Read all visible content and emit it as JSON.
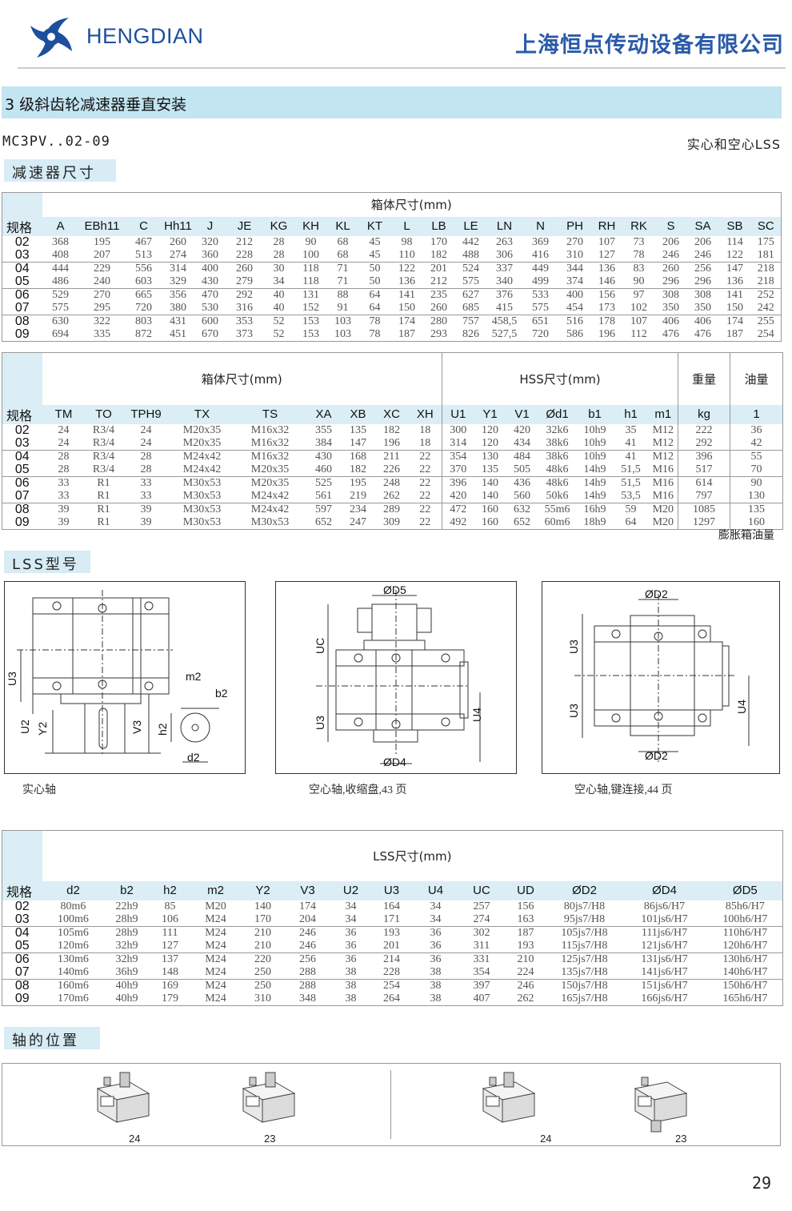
{
  "header": {
    "logo_text": "HENGDIAN",
    "company": "上海恒点传动设备有限公司",
    "brand_color": "#1d4f9e"
  },
  "title": "3 级斜齿轮减速器垂直安装",
  "model": "MC3PV..02-09",
  "shaft_types": "实心和空心LSS",
  "section_reducer": "减速器尺寸",
  "table1": {
    "group": "箱体尺寸(mm)",
    "columns": [
      "规格",
      "A",
      "EBh11",
      "C",
      "Hh11",
      "J",
      "JE",
      "KG",
      "KH",
      "KL",
      "KT",
      "L",
      "LB",
      "LE",
      "LN",
      "N",
      "PH",
      "RH",
      "RK",
      "S",
      "SA",
      "SB",
      "SC"
    ],
    "rows": [
      [
        "02",
        "368",
        "195",
        "467",
        "260",
        "320",
        "212",
        "28",
        "90",
        "68",
        "45",
        "98",
        "170",
        "442",
        "263",
        "369",
        "270",
        "107",
        "73",
        "206",
        "206",
        "114",
        "175"
      ],
      [
        "03",
        "408",
        "207",
        "513",
        "274",
        "360",
        "228",
        "28",
        "100",
        "68",
        "45",
        "110",
        "182",
        "488",
        "306",
        "416",
        "310",
        "127",
        "78",
        "246",
        "246",
        "122",
        "181"
      ],
      [
        "04",
        "444",
        "229",
        "556",
        "314",
        "400",
        "260",
        "30",
        "118",
        "71",
        "50",
        "122",
        "201",
        "524",
        "337",
        "449",
        "344",
        "136",
        "83",
        "260",
        "256",
        "147",
        "218"
      ],
      [
        "05",
        "486",
        "240",
        "603",
        "329",
        "430",
        "279",
        "34",
        "118",
        "71",
        "50",
        "136",
        "212",
        "575",
        "340",
        "499",
        "374",
        "146",
        "90",
        "296",
        "296",
        "136",
        "218"
      ],
      [
        "06",
        "529",
        "270",
        "665",
        "356",
        "470",
        "292",
        "40",
        "131",
        "88",
        "64",
        "141",
        "235",
        "627",
        "376",
        "533",
        "400",
        "156",
        "97",
        "308",
        "308",
        "141",
        "252"
      ],
      [
        "07",
        "575",
        "295",
        "720",
        "380",
        "530",
        "316",
        "40",
        "152",
        "91",
        "64",
        "150",
        "260",
        "685",
        "415",
        "575",
        "454",
        "173",
        "102",
        "350",
        "350",
        "150",
        "242"
      ],
      [
        "08",
        "630",
        "322",
        "803",
        "431",
        "600",
        "353",
        "52",
        "153",
        "103",
        "78",
        "174",
        "280",
        "757",
        "458,5",
        "651",
        "516",
        "178",
        "107",
        "406",
        "406",
        "174",
        "255"
      ],
      [
        "09",
        "694",
        "335",
        "872",
        "451",
        "670",
        "373",
        "52",
        "153",
        "103",
        "78",
        "187",
        "293",
        "826",
        "527,5",
        "720",
        "586",
        "196",
        "112",
        "476",
        "476",
        "187",
        "254"
      ]
    ]
  },
  "table2": {
    "groups": [
      "箱体尺寸(mm)",
      "HSS尺寸(mm)",
      "重量",
      "油量"
    ],
    "columns": [
      "规格",
      "TM",
      "TO",
      "TPH9",
      "TX",
      "TS",
      "XA",
      "XB",
      "XC",
      "XH",
      "U1",
      "Y1",
      "V1",
      "Ød1",
      "b1",
      "h1",
      "m1",
      "kg",
      "1"
    ],
    "rows": [
      [
        "02",
        "24",
        "R3/4",
        "24",
        "M20x35",
        "M16x32",
        "355",
        "135",
        "182",
        "18",
        "300",
        "120",
        "420",
        "32k6",
        "10h9",
        "35",
        "M12",
        "222",
        "36"
      ],
      [
        "03",
        "24",
        "R3/4",
        "24",
        "M20x35",
        "M16x32",
        "384",
        "147",
        "196",
        "18",
        "314",
        "120",
        "434",
        "38k6",
        "10h9",
        "41",
        "M12",
        "292",
        "42"
      ],
      [
        "04",
        "28",
        "R3/4",
        "28",
        "M24x42",
        "M16x32",
        "430",
        "168",
        "211",
        "22",
        "354",
        "130",
        "484",
        "38k6",
        "10h9",
        "41",
        "M12",
        "396",
        "55"
      ],
      [
        "05",
        "28",
        "R3/4",
        "28",
        "M24x42",
        "M20x35",
        "460",
        "182",
        "226",
        "22",
        "370",
        "135",
        "505",
        "48k6",
        "14h9",
        "51,5",
        "M16",
        "517",
        "70"
      ],
      [
        "06",
        "33",
        "R1",
        "33",
        "M30x53",
        "M20x35",
        "525",
        "195",
        "248",
        "22",
        "396",
        "140",
        "436",
        "48k6",
        "14h9",
        "51,5",
        "M16",
        "614",
        "90"
      ],
      [
        "07",
        "33",
        "R1",
        "33",
        "M30x53",
        "M24x42",
        "561",
        "219",
        "262",
        "22",
        "420",
        "140",
        "560",
        "50k6",
        "14h9",
        "53,5",
        "M16",
        "797",
        "130"
      ],
      [
        "08",
        "39",
        "R1",
        "39",
        "M30x53",
        "M24x42",
        "597",
        "234",
        "289",
        "22",
        "472",
        "160",
        "632",
        "55m6",
        "16h9",
        "59",
        "M20",
        "1085",
        "135"
      ],
      [
        "09",
        "39",
        "R1",
        "39",
        "M30x53",
        "M30x53",
        "652",
        "247",
        "309",
        "22",
        "492",
        "160",
        "652",
        "60m6",
        "18h9",
        "64",
        "M20",
        "1297",
        "160"
      ]
    ],
    "footnote": "膨胀箱油量"
  },
  "section_lss": "LSS型号",
  "diagrams": [
    {
      "caption": "实心轴",
      "labels": {
        "u3": "U3",
        "u2": "U2",
        "y2": "Y2",
        "v3": "V3",
        "h2": "h2",
        "m2": "m2",
        "b2": "b2",
        "d2": "d2"
      }
    },
    {
      "caption": "空心轴,收缩盘,43 页",
      "labels": {
        "d5": "ØD5",
        "uc": "UC",
        "u3": "U3",
        "u4": "U4",
        "d4": "ØD4"
      }
    },
    {
      "caption": "空心轴,键连接,44 页",
      "labels": {
        "d2_top": "ØD2",
        "u3_top": "U3",
        "u3_bot": "U3",
        "u4": "U4",
        "d2_bot": "ØD2"
      }
    }
  ],
  "table3": {
    "group": "LSS尺寸(mm)",
    "columns": [
      "规格",
      "d2",
      "b2",
      "h2",
      "m2",
      "Y2",
      "V3",
      "U2",
      "U3",
      "U4",
      "UC",
      "UD",
      "ØD2",
      "ØD4",
      "ØD5"
    ],
    "rows": [
      [
        "02",
        "80m6",
        "22h9",
        "85",
        "M20",
        "140",
        "174",
        "34",
        "164",
        "34",
        "257",
        "156",
        "80js7/H8",
        "86js6/H7",
        "85h6/H7"
      ],
      [
        "03",
        "100m6",
        "28h9",
        "106",
        "M24",
        "170",
        "204",
        "34",
        "171",
        "34",
        "274",
        "163",
        "95js7/H8",
        "101js6/H7",
        "100h6/H7"
      ],
      [
        "04",
        "105m6",
        "28h9",
        "111",
        "M24",
        "210",
        "246",
        "36",
        "193",
        "36",
        "302",
        "187",
        "105js7/H8",
        "111js6/H7",
        "110h6/H7"
      ],
      [
        "05",
        "120m6",
        "32h9",
        "127",
        "M24",
        "210",
        "246",
        "36",
        "201",
        "36",
        "311",
        "193",
        "115js7/H8",
        "121js6/H7",
        "120h6/H7"
      ],
      [
        "06",
        "130m6",
        "32h9",
        "137",
        "M24",
        "220",
        "256",
        "36",
        "214",
        "36",
        "331",
        "210",
        "125js7/H8",
        "131js6/H7",
        "130h6/H7"
      ],
      [
        "07",
        "140m6",
        "36h9",
        "148",
        "M24",
        "250",
        "288",
        "38",
        "228",
        "38",
        "354",
        "224",
        "135js7/H8",
        "141js6/H7",
        "140h6/H7"
      ],
      [
        "08",
        "160m6",
        "40h9",
        "169",
        "M24",
        "250",
        "288",
        "38",
        "254",
        "38",
        "397",
        "246",
        "150js7/H8",
        "151js6/H7",
        "150h6/H7"
      ],
      [
        "09",
        "170m6",
        "40h9",
        "179",
        "M24",
        "310",
        "348",
        "38",
        "264",
        "38",
        "407",
        "262",
        "165js7/H8",
        "166js6/H7",
        "165h6/H7"
      ]
    ]
  },
  "section_shaft_pos": "轴的位置",
  "shaft_positions": [
    "24",
    "23",
    "24",
    "23"
  ],
  "page_number": "29"
}
